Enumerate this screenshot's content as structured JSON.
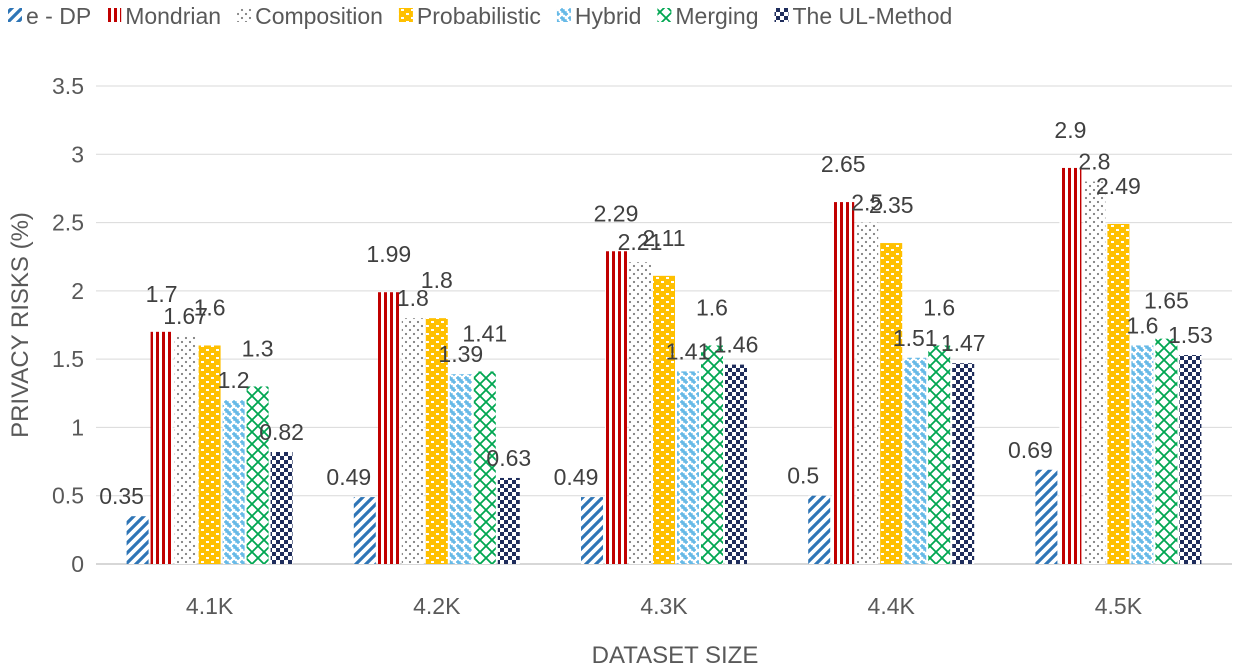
{
  "chart_data": {
    "type": "bar",
    "title": "",
    "xlabel": "DATASET SIZE",
    "ylabel": "PRIVACY RISKS (%)",
    "ylim": [
      0,
      3.5
    ],
    "yticks": [
      "0",
      "0.5",
      "1",
      "1.5",
      "2",
      "2.5",
      "3",
      "3.5"
    ],
    "ytick_values": [
      0,
      0.5,
      1,
      1.5,
      2,
      2.5,
      3,
      3.5
    ],
    "categories": [
      "4.1K",
      "4.2K",
      "4.3K",
      "4.4K",
      "4.5K"
    ],
    "legend_position": "top",
    "grid": true,
    "series": [
      {
        "name": "e - DP",
        "color": "#2E75B6",
        "pattern": "diagonal",
        "values": [
          0.35,
          0.49,
          0.49,
          0.5,
          0.69
        ]
      },
      {
        "name": "Mondrian",
        "color": "#C00000",
        "pattern": "vertical",
        "values": [
          1.7,
          1.99,
          2.29,
          2.65,
          2.9
        ]
      },
      {
        "name": "Composition",
        "color": "#7F7F7F",
        "pattern": "dots",
        "values": [
          1.67,
          1.8,
          2.21,
          2.5,
          2.8
        ]
      },
      {
        "name": "Probabilistic",
        "color": "#FFC000",
        "pattern": "bricks",
        "values": [
          1.6,
          1.8,
          2.11,
          2.35,
          2.49
        ]
      },
      {
        "name": "Hybrid",
        "color": "#5BB4E5",
        "pattern": "weave",
        "values": [
          1.2,
          1.39,
          1.41,
          1.51,
          1.6
        ]
      },
      {
        "name": "Merging",
        "color": "#00A651",
        "pattern": "diamond",
        "values": [
          1.3,
          1.41,
          1.6,
          1.6,
          1.65
        ]
      },
      {
        "name": "The UL-Method",
        "color": "#1F2D5C",
        "pattern": "checker",
        "values": [
          0.82,
          0.63,
          1.46,
          1.47,
          1.53
        ]
      }
    ]
  }
}
